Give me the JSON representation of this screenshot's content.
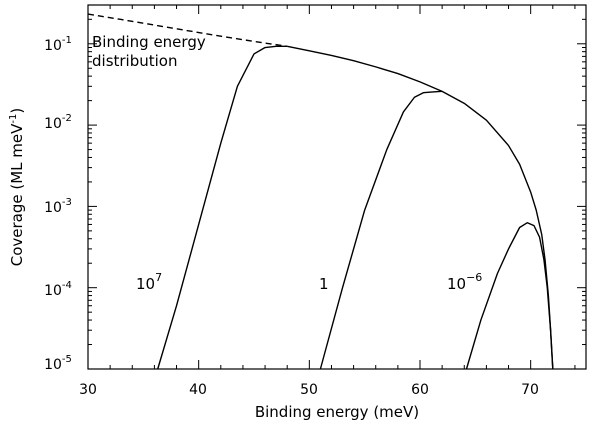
{
  "chart_data": {
    "type": "line",
    "xlabel": "Binding energy (meV)",
    "ylabel_main": "Coverage (ML meV",
    "ylabel_sup": "-1",
    "ylabel_close": ")",
    "xlim": [
      30,
      75
    ],
    "ylim": [
      1e-05,
      0.3
    ],
    "yscale": "log",
    "grid": false,
    "x_ticks": [
      30,
      40,
      50,
      60,
      70
    ],
    "x_tick_labels": [
      "30",
      "40",
      "50",
      "60",
      "70"
    ],
    "y_ticks": [
      {
        "value": 0.1,
        "base": "10",
        "exp": "-1"
      },
      {
        "value": 0.01,
        "base": "10",
        "exp": "-2"
      },
      {
        "value": 0.001,
        "base": "10",
        "exp": "-3"
      },
      {
        "value": 0.0001,
        "base": "10",
        "exp": "-4"
      },
      {
        "value": 1e-05,
        "base": "10",
        "exp": "-5"
      }
    ],
    "annotations": {
      "distribution_line1": "Binding energy",
      "distribution_line2": "distribution",
      "label_a_base": "10",
      "label_a_exp": "7",
      "label_b": "1",
      "label_c_base": "10",
      "label_c_exp": "−6"
    },
    "series": [
      {
        "dash": true,
        "x": [
          30,
          33,
          36,
          39,
          42,
          45,
          48
        ],
        "y": [
          0.232,
          0.199,
          0.17,
          0.145,
          0.124,
          0.107,
          0.093
        ]
      },
      {
        "dash": false,
        "x": [
          48,
          50,
          52,
          54,
          56,
          58,
          60,
          62,
          64,
          66,
          68,
          69,
          70,
          70.5,
          71,
          71.3,
          71.6,
          71.8,
          72
        ],
        "y": [
          0.093,
          0.082,
          0.072,
          0.062,
          0.052,
          0.043,
          0.034,
          0.026,
          0.0185,
          0.0115,
          0.0056,
          0.0033,
          0.0015,
          0.0009,
          0.00045,
          0.00022,
          8e-05,
          3e-05,
          1e-05
        ]
      },
      {
        "dash": false,
        "x": [
          36.3,
          38,
          40,
          42,
          43.5,
          45,
          46,
          47,
          48
        ],
        "y": [
          1e-05,
          6e-05,
          0.0006,
          0.006,
          0.03,
          0.075,
          0.09,
          0.093,
          0.093
        ]
      },
      {
        "dash": false,
        "x": [
          51,
          53,
          55,
          57,
          58.5,
          59.5,
          60.3,
          61,
          62
        ],
        "y": [
          1e-05,
          0.0001,
          0.0009,
          0.005,
          0.0145,
          0.022,
          0.025,
          0.0255,
          0.026
        ]
      },
      {
        "dash": false,
        "x": [
          64.2,
          65.5,
          67,
          68,
          69,
          69.7,
          70.3,
          70.8,
          71.2,
          71.5,
          71.8,
          72
        ],
        "y": [
          1e-05,
          4e-05,
          0.00015,
          0.0003,
          0.00055,
          0.00063,
          0.00058,
          0.00042,
          0.00022,
          0.0001,
          3e-05,
          1e-05
        ]
      }
    ]
  }
}
